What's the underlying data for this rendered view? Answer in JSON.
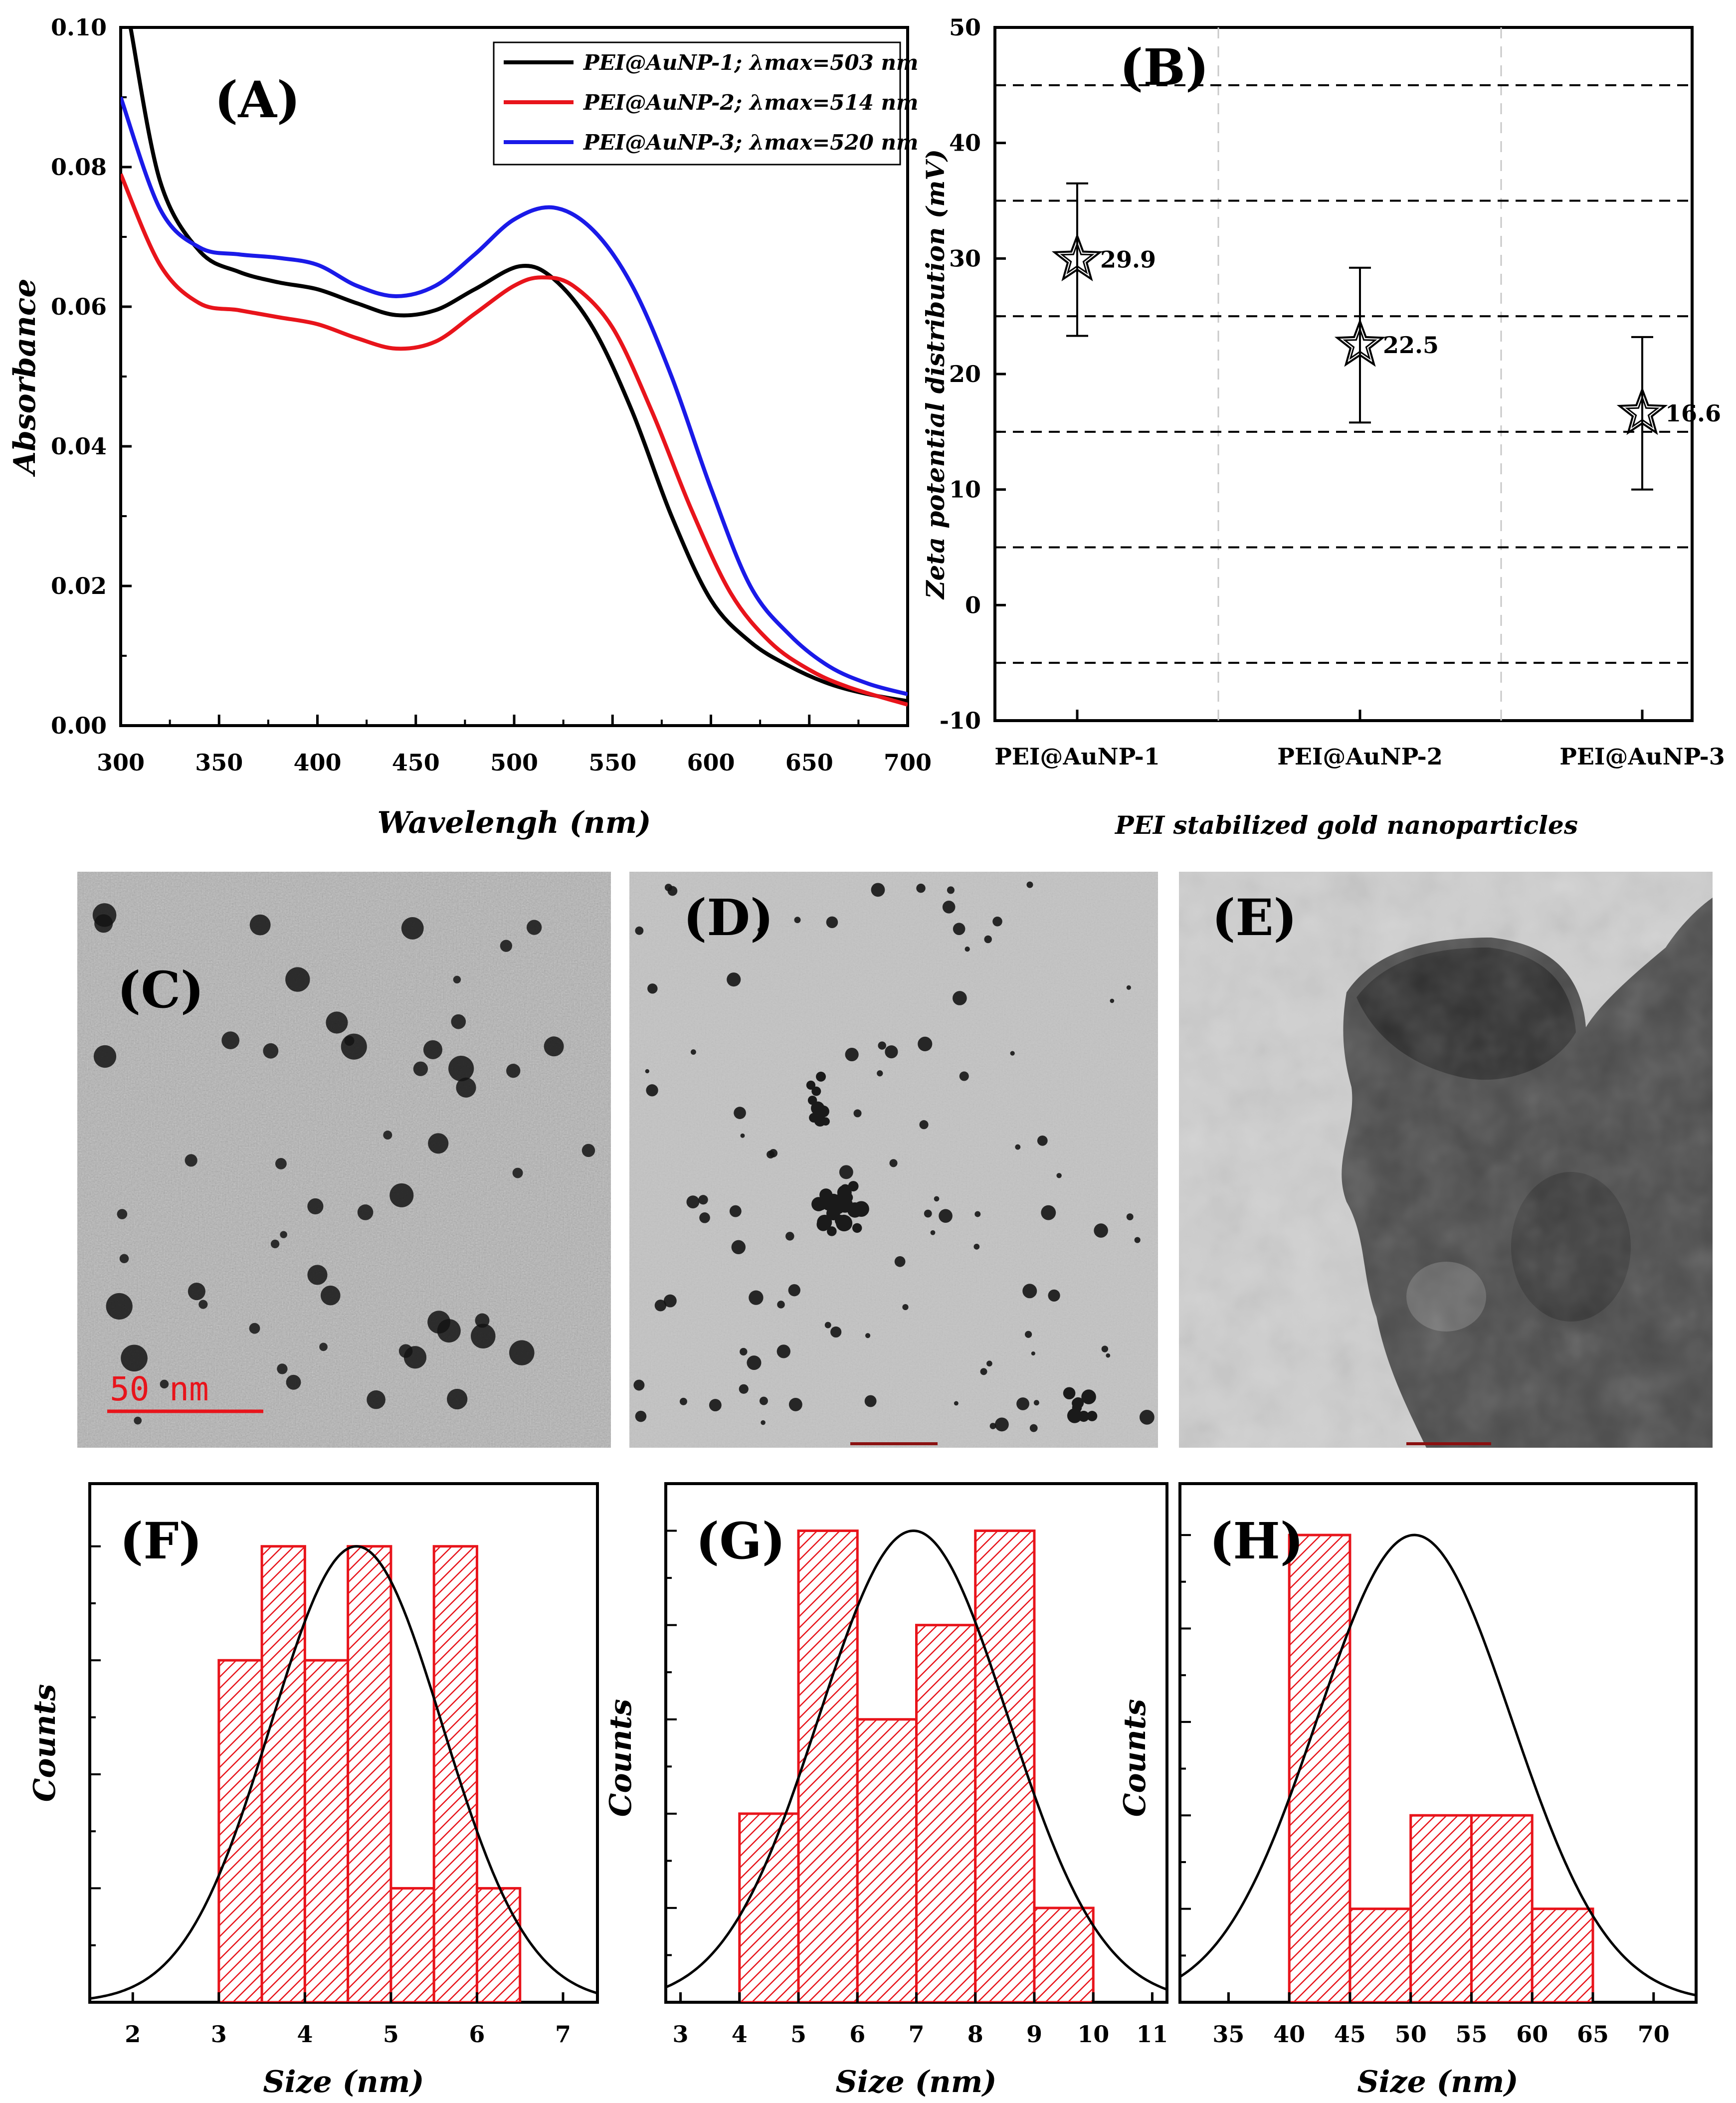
{
  "colors": {
    "black": "#000000",
    "red": "#e8141b",
    "blue": "#1a1ae8",
    "hist_fill": "#e8141b"
  },
  "chart_data": [
    {
      "id": "A",
      "type": "line",
      "panel_label": "(A)",
      "xlabel": "Wavelengh (nm)",
      "ylabel": "Absorbance",
      "xlim": [
        300,
        700
      ],
      "ylim": [
        0,
        0.1
      ],
      "xticks": [
        "300",
        "350",
        "400",
        "450",
        "500",
        "550",
        "600",
        "650",
        "700"
      ],
      "yticks": [
        "0.00",
        "0.02",
        "0.04",
        "0.06",
        "0.08",
        "0.10"
      ],
      "series": [
        {
          "name": "PEI@AuNP-1; λmax=503 nm",
          "color": "#000000",
          "x": [
            305,
            320,
            340,
            360,
            380,
            400,
            420,
            440,
            460,
            480,
            503,
            520,
            540,
            560,
            580,
            600,
            620,
            640,
            660,
            680,
            700
          ],
          "y": [
            0.1,
            0.078,
            0.068,
            0.065,
            0.0635,
            0.0625,
            0.0605,
            0.0588,
            0.0595,
            0.0625,
            0.0658,
            0.064,
            0.057,
            0.045,
            0.03,
            0.018,
            0.012,
            0.0085,
            0.006,
            0.0045,
            0.0035
          ]
        },
        {
          "name": "PEI@AuNP-2; λmax=514 nm",
          "color": "#e8141b",
          "x": [
            300,
            320,
            340,
            360,
            380,
            400,
            420,
            440,
            460,
            480,
            500,
            514,
            530,
            550,
            570,
            590,
            610,
            630,
            650,
            670,
            700
          ],
          "y": [
            0.079,
            0.066,
            0.0605,
            0.0595,
            0.0585,
            0.0575,
            0.0555,
            0.054,
            0.055,
            0.059,
            0.063,
            0.0642,
            0.063,
            0.057,
            0.045,
            0.031,
            0.019,
            0.012,
            0.008,
            0.0055,
            0.003
          ]
        },
        {
          "name": "PEI@AuNP-3; λmax=520 nm",
          "color": "#1a1ae8",
          "x": [
            300,
            320,
            340,
            360,
            380,
            400,
            420,
            440,
            460,
            480,
            500,
            520,
            540,
            560,
            580,
            600,
            620,
            640,
            660,
            680,
            700
          ],
          "y": [
            0.09,
            0.074,
            0.0685,
            0.0675,
            0.067,
            0.066,
            0.063,
            0.0615,
            0.063,
            0.0675,
            0.0725,
            0.0742,
            0.071,
            0.063,
            0.05,
            0.034,
            0.02,
            0.013,
            0.0085,
            0.006,
            0.0045
          ]
        }
      ]
    },
    {
      "id": "B",
      "type": "scatter",
      "panel_label": "(B)",
      "xlabel": "PEI stabilized gold nanoparticles",
      "ylabel": "Zeta potential distribution (mV)",
      "ylim": [
        -10,
        50
      ],
      "yticks": [
        "-10",
        "0",
        "10",
        "20",
        "30",
        "40",
        "50"
      ],
      "categories": [
        "PEI@AuNP-1",
        "PEI@AuNP-2",
        "PEI@AuNP-3"
      ],
      "values": [
        29.9,
        22.5,
        16.6
      ],
      "value_labels": [
        "29.9",
        "22.5",
        "16.6"
      ],
      "err_low": [
        23.3,
        15.8,
        10.0
      ],
      "err_high": [
        36.5,
        29.2,
        23.2
      ],
      "hlines": [
        -5,
        5,
        15,
        25,
        35,
        45
      ]
    },
    {
      "id": "F",
      "type": "bar",
      "panel_label": "(F)",
      "xlabel": "Size (nm)",
      "ylabel": "Counts",
      "xlim": [
        1.5,
        7.4
      ],
      "xticks": [
        "2",
        "3",
        "4",
        "5",
        "6",
        "7"
      ],
      "bin_edges": [
        3,
        3.5,
        4,
        4.5,
        5,
        5.5,
        6,
        6.5
      ],
      "values": [
        3,
        4,
        3,
        4,
        1,
        4,
        1
      ],
      "ymax": 4.55,
      "fit": {
        "mean": 4.6,
        "sd": 1.0,
        "peak": 4.0
      }
    },
    {
      "id": "G",
      "type": "bar",
      "panel_label": "(G)",
      "xlabel": "Size (nm)",
      "ylabel": "Counts",
      "xlim": [
        2.75,
        11.25
      ],
      "xticks": [
        "3",
        "4",
        "5",
        "6",
        "7",
        "8",
        "9",
        "10",
        "11"
      ],
      "bin_edges": [
        4,
        5,
        6,
        7,
        8,
        9,
        10
      ],
      "values": [
        2,
        5,
        3,
        4,
        5,
        1
      ],
      "ymax": 5.5,
      "fit": {
        "mean": 6.95,
        "sd": 1.6,
        "peak": 5.0
      }
    },
    {
      "id": "H",
      "type": "bar",
      "panel_label": "(H)",
      "xlabel": "Size (nm)",
      "ylabel": "Counts",
      "xlim": [
        31,
        73.5
      ],
      "xticks": [
        "35",
        "40",
        "45",
        "50",
        "55",
        "60",
        "65",
        "70"
      ],
      "bin_edges": [
        40,
        45,
        50,
        55,
        60,
        65
      ],
      "values": [
        5,
        1,
        2,
        2,
        1
      ],
      "ymax": 5.55,
      "fit": {
        "mean": 50.3,
        "sd": 8.0,
        "peak": 5.0
      }
    }
  ],
  "tem": [
    {
      "id": "C",
      "panel_label": "(C)",
      "scale_label": "50 nm"
    },
    {
      "id": "D",
      "panel_label": "(D)"
    },
    {
      "id": "E",
      "panel_label": "(E)"
    }
  ]
}
